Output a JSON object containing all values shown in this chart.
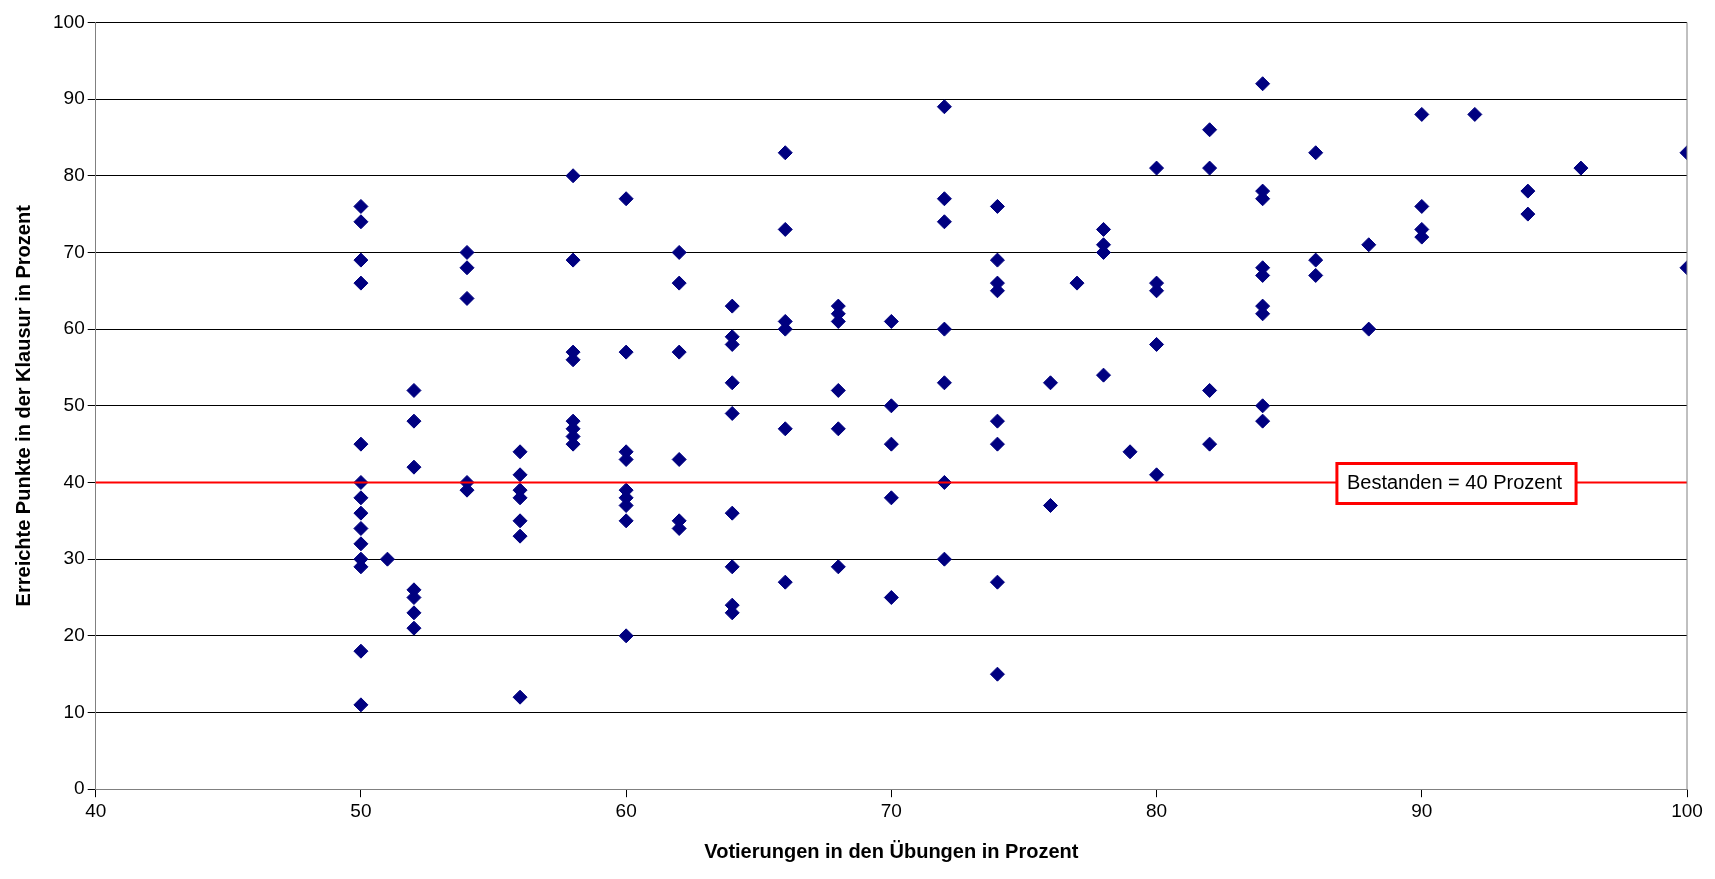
{
  "chart_data": {
    "type": "scatter",
    "xlabel": "Votierungen in den Übungen in Prozent",
    "ylabel": "Erreichte Punkte in der Klausur in Prozent",
    "series": [
      {
        "color": "#000080",
        "x": [
          50,
          50,
          50,
          50,
          50,
          50,
          50,
          50,
          50,
          50,
          50,
          50,
          50,
          50,
          51,
          52,
          52,
          52,
          52,
          52,
          52,
          52,
          54,
          54,
          54,
          54,
          54,
          56,
          56,
          56,
          56,
          56,
          56,
          56,
          58,
          58,
          58,
          58,
          58,
          58,
          58,
          58,
          60,
          60,
          60,
          60,
          60,
          60,
          60,
          60,
          60,
          62,
          62,
          62,
          62,
          62,
          62,
          64,
          64,
          64,
          64,
          64,
          64,
          64,
          64,
          64,
          66,
          66,
          66,
          66,
          66,
          66,
          68,
          68,
          68,
          68,
          68,
          68,
          70,
          70,
          70,
          70,
          70,
          72,
          72,
          72,
          72,
          72,
          72,
          72,
          74,
          74,
          74,
          74,
          74,
          74,
          74,
          74,
          76,
          76,
          77,
          78,
          78,
          78,
          78,
          79,
          80,
          80,
          80,
          80,
          80,
          82,
          82,
          82,
          82,
          84,
          84,
          84,
          84,
          84,
          84,
          84,
          84,
          84,
          86,
          86,
          86,
          88,
          88,
          90,
          90,
          90,
          90,
          92,
          94,
          94,
          96,
          100,
          100
        ],
        "values": [
          76,
          74,
          69,
          66,
          45,
          40,
          38,
          36,
          34,
          32,
          30,
          29,
          18,
          11,
          30,
          52,
          48,
          42,
          26,
          25,
          23,
          21,
          70,
          68,
          64,
          40,
          39,
          44,
          41,
          39,
          38,
          35,
          33,
          12,
          80,
          69,
          57,
          56,
          48,
          47,
          46,
          45,
          77,
          57,
          44,
          43,
          39,
          38,
          37,
          35,
          20,
          70,
          66,
          57,
          43,
          35,
          34,
          63,
          59,
          58,
          53,
          49,
          36,
          29,
          24,
          23,
          83,
          73,
          61,
          60,
          47,
          27,
          63,
          62,
          61,
          52,
          47,
          29,
          61,
          50,
          45,
          38,
          25,
          89,
          77,
          74,
          60,
          53,
          40,
          30,
          76,
          69,
          66,
          65,
          48,
          45,
          27,
          15,
          53,
          37,
          66,
          73,
          71,
          70,
          54,
          44,
          81,
          66,
          65,
          58,
          41,
          86,
          81,
          52,
          45,
          92,
          78,
          77,
          68,
          67,
          63,
          62,
          50,
          48,
          83,
          69,
          67,
          71,
          60,
          88,
          76,
          73,
          72,
          88,
          78,
          75,
          81,
          83,
          68
        ]
      }
    ],
    "xlim": [
      40,
      100
    ],
    "xticks": [
      40,
      50,
      60,
      70,
      80,
      90,
      100
    ],
    "ylim": [
      0,
      100
    ],
    "yticks": [
      0,
      10,
      20,
      30,
      40,
      50,
      60,
      70,
      80,
      90,
      100
    ],
    "grid": "y",
    "marker": "diamond",
    "ref_lines": [
      {
        "axis": "y",
        "value": 40,
        "label": "Bestanden = 40 Prozent",
        "color": "#ff0000"
      }
    ]
  }
}
